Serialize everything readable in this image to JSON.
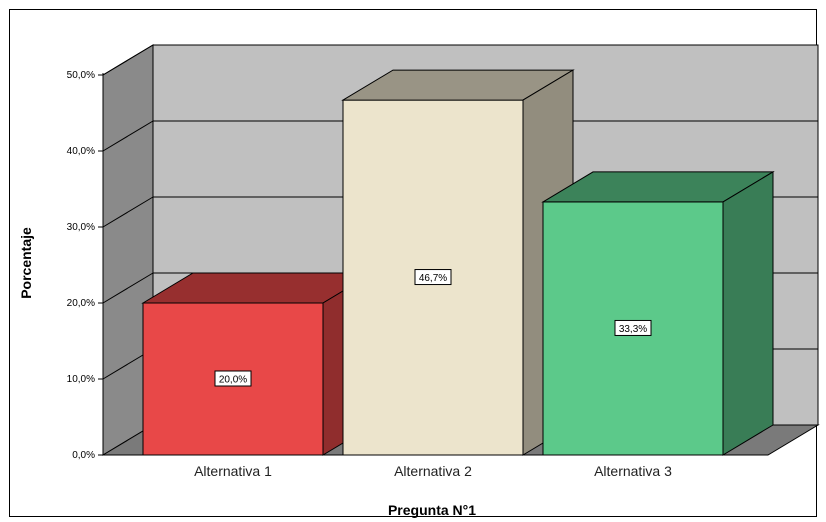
{
  "chart_data": {
    "type": "bar",
    "title": "",
    "xlabel": "Pregunta N°1",
    "ylabel": "Porcentaje",
    "categories": [
      "Alternativa 1",
      "Alternativa 2",
      "Alternativa 3"
    ],
    "values": [
      20.0,
      46.7,
      33.3
    ],
    "data_labels": [
      "20,0%",
      "46,7%",
      "33,3%"
    ],
    "ylim": [
      0,
      50
    ],
    "yticks": [
      0,
      10,
      20,
      30,
      40,
      50
    ],
    "ytick_labels": [
      "0,0%",
      "10,0%",
      "20,0%",
      "30,0%",
      "40,0%",
      "50,0%"
    ],
    "grid": true,
    "style": "3d",
    "colors": [
      "#e84848",
      "#ece4cc",
      "#5cc98a"
    ]
  }
}
